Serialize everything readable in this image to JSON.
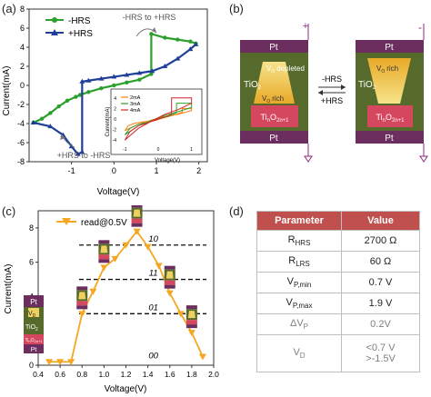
{
  "labels": {
    "a": "(a)",
    "b": "(b)",
    "c": "(c)",
    "d": "(d)"
  },
  "panel_a": {
    "chart_data": {
      "type": "line",
      "xlabel": "Voltage(V)",
      "ylabel": "Current(mA)",
      "xlim": [
        -2,
        2.2
      ],
      "ylim": [
        -8,
        8
      ],
      "xticks": [
        "-1",
        "0",
        "1",
        "2"
      ],
      "yticks": [
        "-8",
        "-6",
        "-4",
        "-2",
        "0",
        "2",
        "4",
        "6",
        "8"
      ],
      "series": [
        {
          "name": "-HRS",
          "color": "#2ca02c",
          "marker": "circle",
          "x": [
            -1.9,
            -1.7,
            -1.5,
            -1.3,
            -1.1,
            -0.9,
            -0.8,
            -0.6,
            -0.3,
            0,
            0.3,
            0.6,
            0.88,
            0.88,
            1.2,
            1.5,
            1.8,
            1.93
          ],
          "y": [
            -3.9,
            -3.5,
            -2.9,
            -2.2,
            -1.6,
            -1.2,
            -1.0,
            -0.7,
            -0.3,
            0,
            0.3,
            0.6,
            1.2,
            5.4,
            5.0,
            4.8,
            4.6,
            4.4
          ]
        },
        {
          "name": "+HRS",
          "color": "#1f3f99",
          "marker": "triangle",
          "x": [
            -1.9,
            -1.5,
            -1.2,
            -1.0,
            -0.85,
            -0.75,
            -0.75,
            -0.6,
            -0.3,
            0,
            0.3,
            0.6,
            0.9,
            1.2,
            1.5,
            1.8,
            1.93
          ],
          "y": [
            -3.9,
            -4.3,
            -5.2,
            -6.4,
            -7.2,
            -7.0,
            0.4,
            0.5,
            0.7,
            0.9,
            1.1,
            1.3,
            1.5,
            2.0,
            2.8,
            3.8,
            4.3
          ]
        }
      ],
      "annotations": [
        "-HRS to +HRS",
        "+HRS to -HRS"
      ],
      "legend": "top-left"
    },
    "inset": {
      "chart_data": {
        "type": "line",
        "xlabel": "Voltage(V)",
        "ylabel": "Current(mA)",
        "xlim": [
          -1.2,
          1.2
        ],
        "ylim": [
          -5,
          5
        ],
        "xticks": [
          "-1",
          "0",
          "1"
        ],
        "yticks": [
          "-4",
          "-2",
          "0",
          "2",
          "4"
        ],
        "series": [
          {
            "name": "2mA",
            "color": "#ff7f0e",
            "x": [
              -1,
              -0.9,
              -0.7,
              -0.4,
              -0.1,
              0.2,
              0.5,
              0.72,
              0.72,
              0.85,
              1,
              1,
              0.6,
              0.2,
              -0.2,
              -0.6,
              -1
            ],
            "y": [
              -2.2,
              -1.3,
              -0.8,
              -0.5,
              -0.3,
              0.3,
              0.8,
              1.3,
              2.0,
              2.0,
              2.0,
              1.6,
              0.9,
              0.5,
              -0.2,
              -1.0,
              -2.2
            ]
          },
          {
            "name": "3mA",
            "color": "#2ca02c",
            "x": [
              -1,
              -0.85,
              -0.6,
              -0.3,
              0,
              0.3,
              0.55,
              0.55,
              0.8,
              1,
              1,
              0.6,
              0.2,
              -0.2,
              -0.6,
              -1
            ],
            "y": [
              -3.0,
              -1.8,
              -1.0,
              -0.6,
              0,
              0.5,
              1.2,
              3.0,
              3.0,
              3.0,
              2.2,
              1.4,
              0.7,
              -0.3,
              -1.3,
              -3.0
            ]
          },
          {
            "name": "4mA",
            "color": "#d62728",
            "x": [
              -1,
              -0.85,
              -0.6,
              -0.3,
              0,
              0.3,
              0.4,
              0.4,
              0.7,
              1,
              1,
              0.6,
              0.2,
              -0.2,
              -0.6,
              -1
            ],
            "y": [
              -4.0,
              -2.4,
              -1.3,
              -0.7,
              0,
              0.6,
              1.0,
              4.0,
              4.0,
              4.0,
              3.0,
              1.8,
              0.9,
              -0.4,
              -1.8,
              -4.0
            ]
          }
        ],
        "legend": "top-left"
      }
    }
  },
  "panel_b": {
    "top_electrode": "Pt",
    "bottom_electrode": "Pt",
    "oxide": "TiO",
    "oxide_sub": "2",
    "depleted": "depleted",
    "rich": "rich",
    "vo": "V",
    "vo_sub": "O",
    "magneli_base": "Ti",
    "magneli_n": "n",
    "magneli_o": "O",
    "magneli_sub": "2n+1",
    "arrow_top": "-HRS",
    "arrow_bottom": "+HRS",
    "left_polarity": "+",
    "right_polarity": "-"
  },
  "panel_c": {
    "chart_data": {
      "type": "line",
      "xlabel": "Voltage(V)",
      "ylabel": "Current(mA)",
      "xlim": [
        0.4,
        2.0
      ],
      "ylim": [
        0,
        9
      ],
      "xticks": [
        "0.4",
        "0.6",
        "0.8",
        "1.0",
        "1.2",
        "1.4",
        "1.6",
        "1.8",
        "2.0"
      ],
      "yticks": [
        "0",
        "2",
        "4",
        "6",
        "8"
      ],
      "series": [
        {
          "name": "read@0.5V",
          "color": "#f5a623",
          "marker": "triangle-down",
          "x": [
            0.5,
            0.6,
            0.7,
            0.8,
            0.9,
            1.0,
            1.1,
            1.2,
            1.3,
            1.4,
            1.5,
            1.6,
            1.7,
            1.8,
            1.9
          ],
          "y": [
            0.2,
            0.2,
            0.2,
            3.0,
            4.3,
            5.7,
            6.2,
            7.0,
            7.8,
            6.9,
            5.8,
            4.2,
            3.0,
            1.9,
            0.5
          ]
        }
      ],
      "levels": [
        {
          "label": "10",
          "y": 7
        },
        {
          "label": "11",
          "y": 5
        },
        {
          "label": "01",
          "y": 3
        },
        {
          "label": "00",
          "y": 0.4
        }
      ],
      "legend": "top-left"
    },
    "stack": {
      "top": "Pt",
      "vd": "V",
      "vd_sub": "D",
      "oxide": "TiO",
      "oxide_sub": "2",
      "magneli": "Ti",
      "magneli_n": "n",
      "magneli_o": "O",
      "magneli_sub": "2n+1",
      "bottom": "Pt"
    }
  },
  "panel_d": {
    "headers": [
      "Parameter",
      "Value"
    ],
    "rows": [
      {
        "param": "R",
        "sub": "HRS",
        "value": "2700 Ω",
        "dim": false
      },
      {
        "param": "R",
        "sub": "LRS",
        "value": "60 Ω",
        "dim": false
      },
      {
        "param": "V",
        "sub": "P,min",
        "value": "0.7 V",
        "dim": false
      },
      {
        "param": "V",
        "sub": "P,max",
        "value": "1.9 V",
        "dim": false
      },
      {
        "param": "ΔV",
        "sub": "P",
        "value": "0.2V",
        "dim": true
      },
      {
        "param": "V",
        "sub": "D",
        "value": "<0.7 V",
        "value2": ">-1.5V",
        "dim": true
      }
    ]
  }
}
